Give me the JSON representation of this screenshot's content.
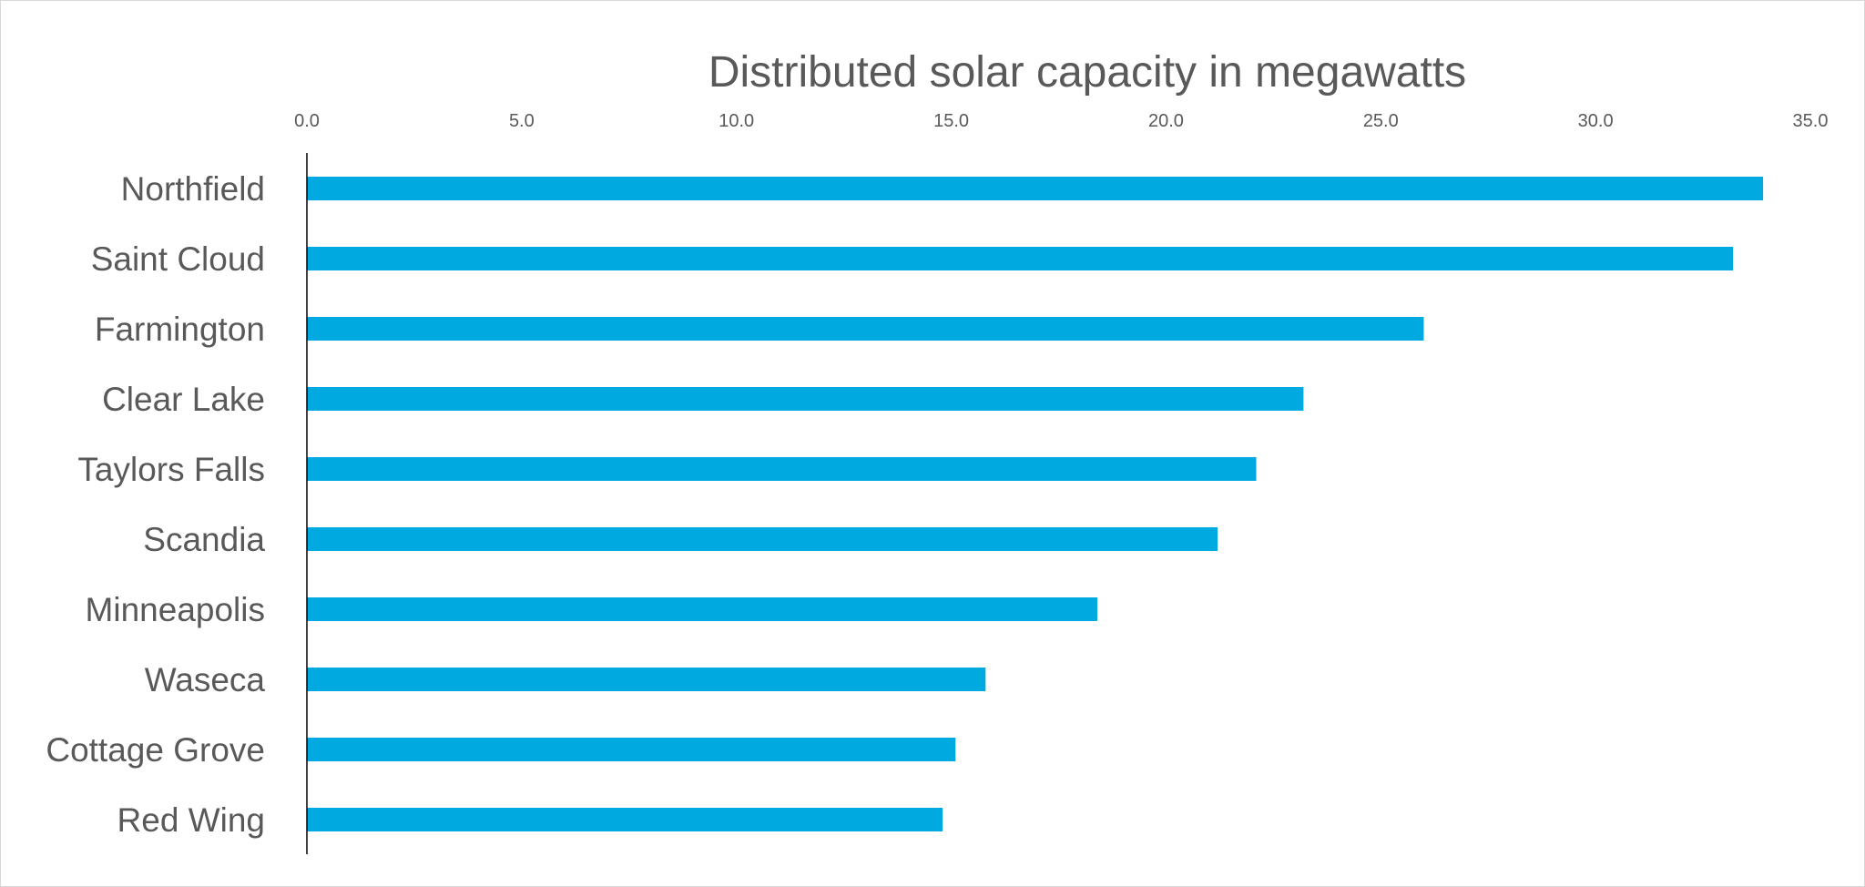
{
  "chart_data": {
    "type": "bar",
    "orientation": "horizontal",
    "title": "Distributed solar capacity in megawatts",
    "xlabel": "",
    "ylabel": "",
    "xlim": [
      0,
      35
    ],
    "x_ticks": [
      "0.0",
      "5.0",
      "10.0",
      "15.0",
      "20.0",
      "25.0",
      "30.0",
      "35.0"
    ],
    "x_axis_position": "top",
    "grid": false,
    "legend": "none",
    "categories": [
      "Northfield",
      "Saint Cloud",
      "Farmington",
      "Clear Lake",
      "Taylors Falls",
      "Scandia",
      "Minneapolis",
      "Waseca",
      "Cottage Grove",
      "Red Wing"
    ],
    "values": [
      33.9,
      33.2,
      26.0,
      23.2,
      22.1,
      21.2,
      18.4,
      15.8,
      15.1,
      14.8
    ],
    "bar_color": "#00A9E0"
  }
}
